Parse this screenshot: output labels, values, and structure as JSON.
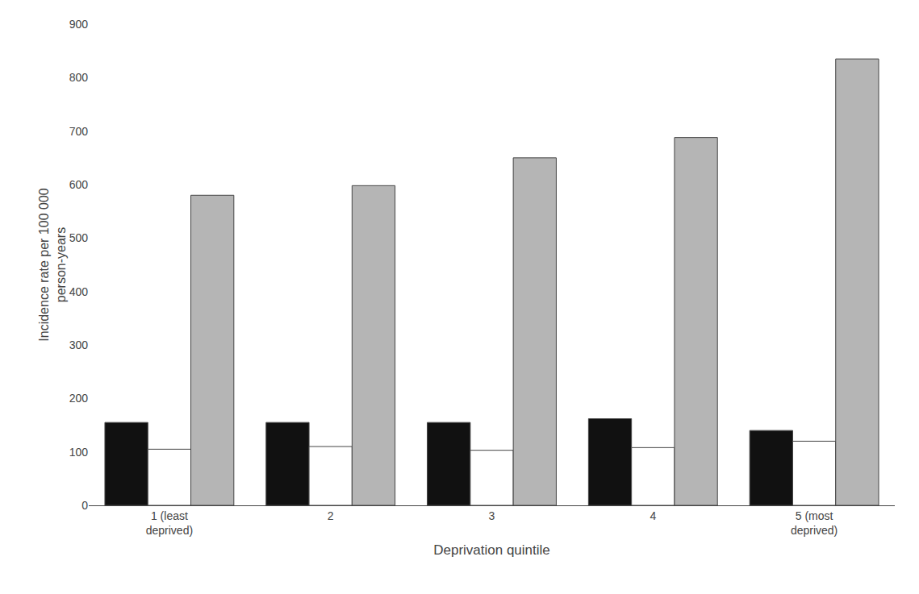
{
  "chart_data": {
    "type": "bar",
    "categories": [
      "1 (least\ndeprived)",
      "2",
      "3",
      "4",
      "5 (most\ndeprived)"
    ],
    "series": [
      {
        "color": "#111111",
        "values": [
          155,
          155,
          155,
          162,
          140
        ]
      },
      {
        "color": "#ffffff",
        "values": [
          105,
          110,
          103,
          108,
          120
        ]
      },
      {
        "color": "#b5b5b5",
        "values": [
          580,
          598,
          650,
          688,
          835
        ]
      }
    ],
    "xlabel": "Deprivation quintile",
    "ylabel": "Incidence rate per 100 000\nperson-years",
    "ylim": [
      0,
      900
    ],
    "yticks": [
      0,
      100,
      200,
      300,
      400,
      500,
      600,
      700,
      800,
      900
    ],
    "grid": false
  }
}
